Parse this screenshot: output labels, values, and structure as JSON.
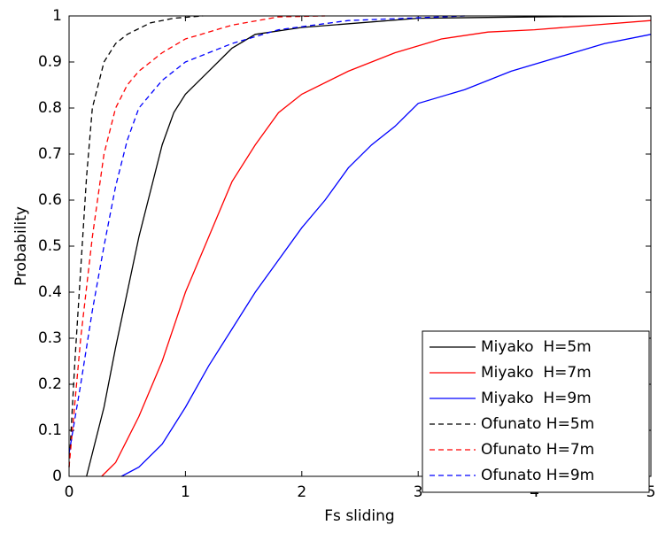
{
  "chart_data": {
    "type": "line",
    "xlabel": "Fs sliding",
    "ylabel": "Probability",
    "xlim": [
      0,
      5
    ],
    "xticks": [
      0,
      1,
      2,
      3,
      4,
      5
    ],
    "ylim": [
      0,
      1
    ],
    "yticks": [
      0,
      0.1,
      0.2,
      0.3,
      0.4,
      0.5,
      0.6,
      0.7,
      0.8,
      0.9,
      1
    ],
    "grid": false,
    "legend": "lower right",
    "series": [
      {
        "name": "Miyako  H=5m",
        "color": "#000000",
        "dash": "solid",
        "x": [
          0.15,
          0.2,
          0.3,
          0.4,
          0.5,
          0.6,
          0.7,
          0.8,
          0.9,
          1.0,
          1.2,
          1.4,
          1.6,
          2.0,
          2.5,
          3.0,
          4.0,
          5.0
        ],
        "values": [
          0,
          0.05,
          0.15,
          0.28,
          0.4,
          0.52,
          0.62,
          0.72,
          0.79,
          0.83,
          0.88,
          0.93,
          0.96,
          0.975,
          0.985,
          0.995,
          0.998,
          1.0
        ]
      },
      {
        "name": "Miyako  H=7m",
        "color": "#ff0000",
        "dash": "solid",
        "x": [
          0.28,
          0.4,
          0.5,
          0.6,
          0.8,
          1.0,
          1.2,
          1.4,
          1.6,
          1.8,
          2.0,
          2.4,
          2.8,
          3.2,
          3.6,
          4.0,
          4.5,
          5.0
        ],
        "values": [
          0,
          0.03,
          0.08,
          0.13,
          0.25,
          0.4,
          0.52,
          0.64,
          0.72,
          0.79,
          0.83,
          0.88,
          0.92,
          0.95,
          0.965,
          0.97,
          0.98,
          0.99
        ]
      },
      {
        "name": "Miyako  H=9m",
        "color": "#0000ff",
        "dash": "solid",
        "x": [
          0.45,
          0.6,
          0.8,
          1.0,
          1.2,
          1.4,
          1.6,
          1.8,
          2.0,
          2.2,
          2.4,
          2.6,
          2.8,
          3.0,
          3.4,
          3.8,
          4.2,
          4.6,
          5.0
        ],
        "values": [
          0,
          0.02,
          0.07,
          0.15,
          0.24,
          0.32,
          0.4,
          0.47,
          0.54,
          0.6,
          0.67,
          0.72,
          0.76,
          0.81,
          0.84,
          0.88,
          0.91,
          0.94,
          0.96
        ]
      },
      {
        "name": "Ofunato H=5m",
        "color": "#000000",
        "dash": "dashed",
        "x": [
          0,
          0.05,
          0.1,
          0.15,
          0.2,
          0.3,
          0.4,
          0.5,
          0.7,
          0.9,
          1.15
        ],
        "values": [
          0.02,
          0.25,
          0.45,
          0.65,
          0.8,
          0.9,
          0.94,
          0.96,
          0.985,
          0.995,
          1.0
        ]
      },
      {
        "name": "Ofunato H=7m",
        "color": "#ff0000",
        "dash": "dashed",
        "x": [
          0,
          0.1,
          0.2,
          0.3,
          0.4,
          0.5,
          0.6,
          0.8,
          1.0,
          1.4,
          1.8,
          2.2
        ],
        "values": [
          0.02,
          0.3,
          0.52,
          0.7,
          0.8,
          0.85,
          0.88,
          0.92,
          0.95,
          0.98,
          0.998,
          1.0
        ]
      },
      {
        "name": "Ofunato H=9m",
        "color": "#0000ff",
        "dash": "dashed",
        "x": [
          0,
          0.1,
          0.2,
          0.3,
          0.4,
          0.5,
          0.6,
          0.8,
          1.0,
          1.4,
          1.8,
          2.4,
          3.4
        ],
        "values": [
          0.05,
          0.2,
          0.36,
          0.5,
          0.63,
          0.73,
          0.8,
          0.86,
          0.9,
          0.94,
          0.97,
          0.99,
          1.0
        ]
      }
    ]
  }
}
